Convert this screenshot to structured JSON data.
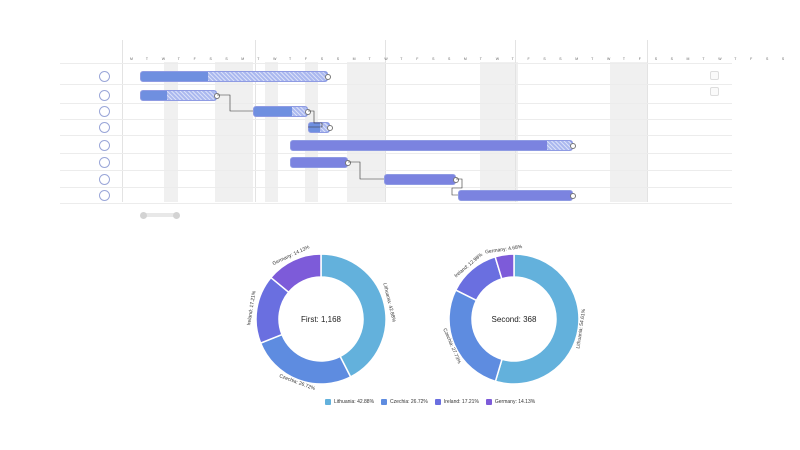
{
  "colors": {
    "lithuania": "#63b1dc",
    "czechia": "#5e8ce0",
    "ireland": "#6a6fe0",
    "germany": "#7d5bd9",
    "bar_blue": "#6f8fe0",
    "bar_violet": "#7b83e0",
    "weekend": "#f0f0f0"
  },
  "gantt": {
    "weeks": [
      "Feb 09, 2026",
      "Feb 16, 2026",
      "Feb 23, 2026",
      "Mar 02, 2026",
      "Mar 09, 2026"
    ],
    "day_letters": [
      "M",
      "T",
      "W",
      "T",
      "F",
      "S",
      "S"
    ],
    "tasks": [
      {
        "num": "8"
      },
      {
        "num": "4"
      },
      {
        "num": "3"
      },
      {
        "num": "1"
      },
      {
        "num": "11"
      },
      {
        "num": "3"
      },
      {
        "num": "4"
      },
      {
        "num": "4"
      }
    ]
  },
  "donuts": [
    {
      "center": "First: 1,168",
      "slices": [
        {
          "name": "Lithuania",
          "pct": 42.88,
          "label": "Lithuania: 42.88%",
          "color_key": "lithuania"
        },
        {
          "name": "Czechia",
          "pct": 26.72,
          "label": "Czechia: 26.72%",
          "color_key": "czechia"
        },
        {
          "name": "Ireland",
          "pct": 17.21,
          "label": "Ireland: 17.21%",
          "color_key": "ireland"
        },
        {
          "name": "Germany",
          "pct": 14.13,
          "label": "Germany: 14.13%",
          "color_key": "germany"
        }
      ]
    },
    {
      "center": "Second: 368",
      "slices": [
        {
          "name": "Lithuania",
          "pct": 54.61,
          "label": "Lithuania: 54.61%",
          "color_key": "lithuania"
        },
        {
          "name": "Czechia",
          "pct": 27.73,
          "label": "Czechia: 27.73%",
          "color_key": "czechia"
        },
        {
          "name": "Ireland",
          "pct": 12.98,
          "label": "Ireland: 12.98%",
          "color_key": "ireland"
        },
        {
          "name": "Germany",
          "pct": 4.68,
          "label": "Germany: 4.68%",
          "color_key": "germany"
        }
      ]
    }
  ],
  "legend": [
    {
      "label": "Lithuania: 42.88%",
      "color_key": "lithuania"
    },
    {
      "label": "Czechia: 26.72%",
      "color_key": "czechia"
    },
    {
      "label": "Ireland: 17.21%",
      "color_key": "ireland"
    },
    {
      "label": "Germany: 14.13%",
      "color_key": "germany"
    }
  ]
}
